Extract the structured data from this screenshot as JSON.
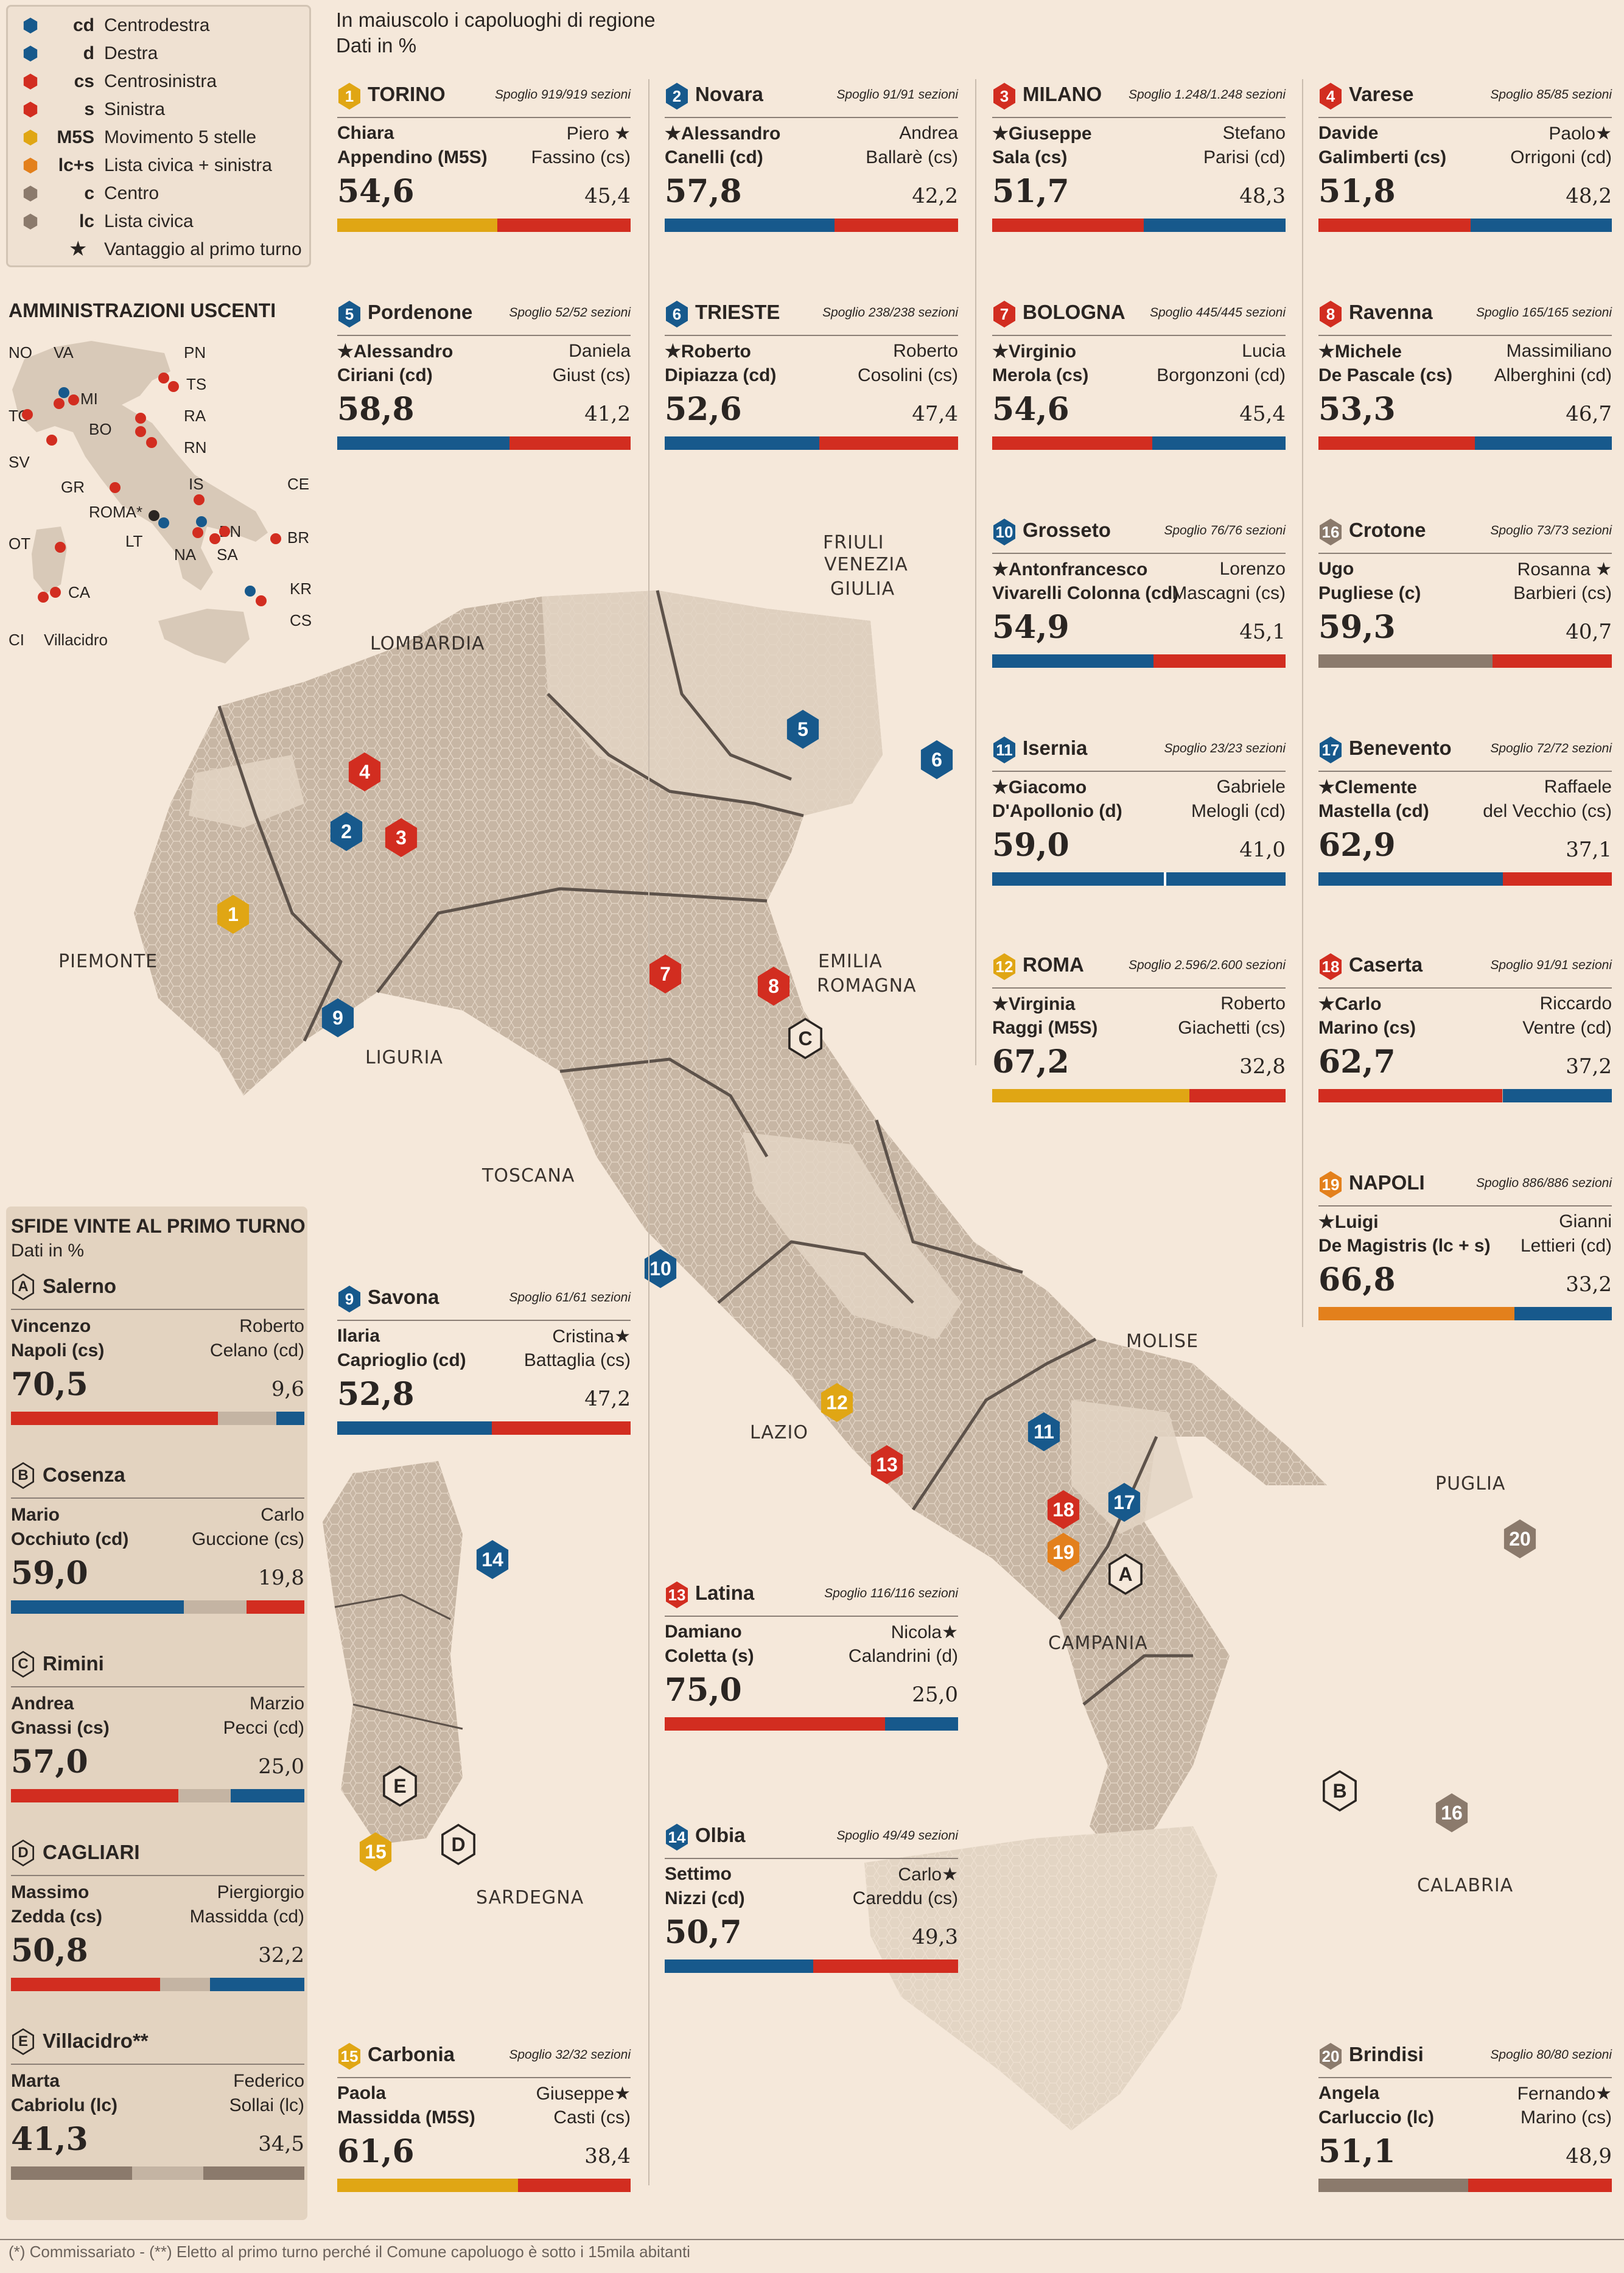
{
  "colors": {
    "cd": "#17598c",
    "d": "#17598c",
    "cs": "#d22d20",
    "s": "#d22d20",
    "M5S": "#e0a614",
    "lcs": "#e3801c",
    "c": "#8b7a6c",
    "lc": "#8b7a6c",
    "rest": "#c4b4a3",
    "map": "#c7b6a4",
    "mapLight": "#e3d5c4"
  },
  "legend": [
    {
      "code": "cd",
      "label": "Centrodestra",
      "color": "#17598c"
    },
    {
      "code": "d",
      "label": "Destra",
      "color": "#17598c"
    },
    {
      "code": "cs",
      "label": "Centrosinistra",
      "color": "#d22d20"
    },
    {
      "code": "s",
      "label": "Sinistra",
      "color": "#d22d20"
    },
    {
      "code": "M5S",
      "label": "Movimento 5 stelle",
      "color": "#e0a614"
    },
    {
      "code": "lc+s",
      "label": "Lista civica + sinistra",
      "color": "#e3801c"
    },
    {
      "code": "c",
      "label": "Centro",
      "color": "#8b7a6c"
    },
    {
      "code": "lc",
      "label": "Lista civica",
      "color": "#8b7a6c"
    }
  ],
  "legend_star": "Vantaggio al primo turno",
  "header": {
    "line1": "In maiuscolo i capoluoghi di regione",
    "line2": "Dati in %"
  },
  "mini_map": {
    "title": "AMMINISTRAZIONI USCENTI",
    "labels": [
      "NO",
      "VA",
      "PN",
      "TS",
      "MI",
      "TO",
      "RA",
      "BO",
      "SV",
      "RN",
      "GR",
      "IS",
      "CE",
      "ROMA*",
      "BN",
      "LT",
      "NA",
      "SA",
      "BR",
      "OT",
      "CA",
      "KR",
      "CS",
      "CI",
      "Villacidro"
    ]
  },
  "regions": [
    "FRIULI",
    "VENEZIA",
    "GIULIA",
    "LOMBARDIA",
    "PIEMONTE",
    "LIGURIA",
    "EMILIA",
    "ROMAGNA",
    "TOSCANA",
    "MOLISE",
    "LAZIO",
    "PUGLIA",
    "CAMPANIA",
    "CALABRIA",
    "SARDEGNA"
  ],
  "chart_data": {
    "type": "table",
    "title": "",
    "ballottaggi": [
      {
        "n": "1",
        "city": "TORINO",
        "spoglio": "Spoglio 919/919 sezioni",
        "l1": "Chiara",
        "l2": "Appendino (M5S)",
        "r1": "Piero ★",
        "r2": "Fassino (cs)",
        "vl": "54,6",
        "vr": "45,4",
        "cl": "M5S",
        "cr": "cs",
        "badge": "M5S"
      },
      {
        "n": "2",
        "city": "Novara",
        "spoglio": "Spoglio 91/91 sezioni",
        "l1": "★Alessandro",
        "l2": "Canelli (cd)",
        "r1": "Andrea",
        "r2": "Ballarè (cs)",
        "vl": "57,8",
        "vr": "42,2",
        "cl": "cd",
        "cr": "cs",
        "badge": "cd"
      },
      {
        "n": "3",
        "city": "MILANO",
        "spoglio": "Spoglio 1.248/1.248 sezioni",
        "l1": "★Giuseppe",
        "l2": "Sala (cs)",
        "r1": "Stefano",
        "r2": "Parisi (cd)",
        "vl": "51,7",
        "vr": "48,3",
        "cl": "cs",
        "cr": "cd",
        "badge": "cs"
      },
      {
        "n": "4",
        "city": "Varese",
        "spoglio": "Spoglio 85/85 sezioni",
        "l1": "Davide",
        "l2": "Galimberti (cs)",
        "r1": "Paolo★",
        "r2": "Orrigoni (cd)",
        "vl": "51,8",
        "vr": "48,2",
        "cl": "cs",
        "cr": "cd",
        "badge": "cs"
      },
      {
        "n": "5",
        "city": "Pordenone",
        "spoglio": "Spoglio 52/52 sezioni",
        "l1": "★Alessandro",
        "l2": "Ciriani (cd)",
        "r1": "Daniela",
        "r2": "Giust (cs)",
        "vl": "58,8",
        "vr": "41,2",
        "cl": "cd",
        "cr": "cs",
        "badge": "cd"
      },
      {
        "n": "6",
        "city": "TRIESTE",
        "spoglio": "Spoglio 238/238 sezioni",
        "l1": "★Roberto",
        "l2": "Dipiazza (cd)",
        "r1": "Roberto",
        "r2": "Cosolini (cs)",
        "vl": "52,6",
        "vr": "47,4",
        "cl": "cd",
        "cr": "cs",
        "badge": "cd"
      },
      {
        "n": "7",
        "city": "BOLOGNA",
        "spoglio": "Spoglio 445/445 sezioni",
        "l1": "★Virginio",
        "l2": "Merola (cs)",
        "r1": "Lucia",
        "r2": "Borgonzoni (cd)",
        "vl": "54,6",
        "vr": "45,4",
        "cl": "cs",
        "cr": "cd",
        "badge": "cs"
      },
      {
        "n": "8",
        "city": "Ravenna",
        "spoglio": "Spoglio 165/165 sezioni",
        "l1": "★Michele",
        "l2": "De Pascale (cs)",
        "r1": "Massimiliano",
        "r2": "Alberghini (cd)",
        "vl": "53,3",
        "vr": "46,7",
        "cl": "cs",
        "cr": "cd",
        "badge": "cs"
      },
      {
        "n": "10",
        "city": "Grosseto",
        "spoglio": "Spoglio 76/76 sezioni",
        "l1": "★Antonfrancesco",
        "l2": "Vivarelli Colonna (cd)",
        "r1": "Lorenzo",
        "r2": "Mascagni (cs)",
        "vl": "54,9",
        "vr": "45,1",
        "cl": "cd",
        "cr": "cs",
        "badge": "cd"
      },
      {
        "n": "16",
        "city": "Crotone",
        "spoglio": "Spoglio 73/73 sezioni",
        "l1": "Ugo",
        "l2": "Pugliese (c)",
        "r1": "Rosanna ★",
        "r2": "Barbieri (cs)",
        "vl": "59,3",
        "vr": "40,7",
        "cl": "c",
        "cr": "cs",
        "badge": "c"
      },
      {
        "n": "11",
        "city": "Isernia",
        "spoglio": "Spoglio 23/23 sezioni",
        "l1": "★Giacomo",
        "l2": "D'Apollonio (d)",
        "r1": "Gabriele",
        "r2": "Melogli (cd)",
        "vl": "59,0",
        "vr": "41,0",
        "cl": "d",
        "cr": "cd",
        "badge": "d"
      },
      {
        "n": "17",
        "city": "Benevento",
        "spoglio": "Spoglio 72/72 sezioni",
        "l1": "★Clemente",
        "l2": "Mastella (cd)",
        "r1": "Raffaele",
        "r2": "del Vecchio (cs)",
        "vl": "62,9",
        "vr": "37,1",
        "cl": "cd",
        "cr": "cs",
        "badge": "cd"
      },
      {
        "n": "12",
        "city": "ROMA",
        "spoglio": "Spoglio 2.596/2.600 sezioni",
        "l1": "★Virginia",
        "l2": "Raggi (M5S)",
        "r1": "Roberto",
        "r2": "Giachetti (cs)",
        "vl": "67,2",
        "vr": "32,8",
        "cl": "M5S",
        "cr": "cs",
        "badge": "M5S"
      },
      {
        "n": "18",
        "city": "Caserta",
        "spoglio": "Spoglio 91/91 sezioni",
        "l1": "★Carlo",
        "l2": "Marino (cs)",
        "r1": "Riccardo",
        "r2": "Ventre (cd)",
        "vl": "62,7",
        "vr": "37,2",
        "cl": "cs",
        "cr": "cd",
        "badge": "cs"
      },
      {
        "n": "19",
        "city": "NAPOLI",
        "spoglio": "Spoglio 886/886 sezioni",
        "l1": "★Luigi",
        "l2": "De Magistris (lc + s)",
        "r1": "Gianni",
        "r2": "Lettieri (cd)",
        "vl": "66,8",
        "vr": "33,2",
        "cl": "lcs",
        "cr": "cd",
        "badge": "lcs"
      },
      {
        "n": "9",
        "city": "Savona",
        "spoglio": "Spoglio 61/61 sezioni",
        "l1": "Ilaria",
        "l2": "Caprioglio (cd)",
        "r1": "Cristina★",
        "r2": "Battaglia (cs)",
        "vl": "52,8",
        "vr": "47,2",
        "cl": "cd",
        "cr": "cs",
        "badge": "cd"
      },
      {
        "n": "13",
        "city": "Latina",
        "spoglio": "Spoglio 116/116 sezioni",
        "l1": "Damiano",
        "l2": "Coletta (s)",
        "r1": "Nicola★",
        "r2": "Calandrini (d)",
        "vl": "75,0",
        "vr": "25,0",
        "cl": "s",
        "cr": "d",
        "badge": "s"
      },
      {
        "n": "14",
        "city": "Olbia",
        "spoglio": "Spoglio 49/49 sezioni",
        "l1": "Settimo",
        "l2": "Nizzi (cd)",
        "r1": "Carlo★",
        "r2": "Careddu (cs)",
        "vl": "50,7",
        "vr": "49,3",
        "cl": "cd",
        "cr": "cs",
        "badge": "cd"
      },
      {
        "n": "15",
        "city": "Carbonia",
        "spoglio": "Spoglio 32/32 sezioni",
        "l1": "Paola",
        "l2": "Massidda (M5S)",
        "r1": "Giuseppe★",
        "r2": "Casti (cs)",
        "vl": "61,6",
        "vr": "38,4",
        "cl": "M5S",
        "cr": "cs",
        "badge": "M5S"
      },
      {
        "n": "20",
        "city": "Brindisi",
        "spoglio": "Spoglio 80/80 sezioni",
        "l1": "Angela",
        "l2": "Carluccio (lc)",
        "r1": "Fernando★",
        "r2": "Marino (cs)",
        "vl": "51,1",
        "vr": "48,9",
        "cl": "lc",
        "cr": "cs",
        "badge": "lc"
      }
    ],
    "primo_turno": {
      "title": "SFIDE VINTE AL PRIMO TURNO",
      "subtitle": "Dati in %",
      "items": [
        {
          "letter": "A",
          "city": "Salerno",
          "l1": "Vincenzo",
          "l2": "Napoli (cs)",
          "r1": "Roberto",
          "r2": "Celano (cd)",
          "vl": "70,5",
          "vr": "9,6",
          "cl": "cs",
          "cr": "cd"
        },
        {
          "letter": "B",
          "city": "Cosenza",
          "l1": "Mario",
          "l2": "Occhiuto (cd)",
          "r1": "Carlo",
          "r2": "Guccione (cs)",
          "vl": "59,0",
          "vr": "19,8",
          "cl": "cd",
          "cr": "cs"
        },
        {
          "letter": "C",
          "city": "Rimini",
          "l1": "Andrea",
          "l2": "Gnassi (cs)",
          "r1": "Marzio",
          "r2": "Pecci (cd)",
          "vl": "57,0",
          "vr": "25,0",
          "cl": "cs",
          "cr": "cd"
        },
        {
          "letter": "D",
          "city": "CAGLIARI",
          "l1": "Massimo",
          "l2": "Zedda (cs)",
          "r1": "Piergiorgio",
          "r2": "Massidda (cd)",
          "vl": "50,8",
          "vr": "32,2",
          "cl": "cs",
          "cr": "cd"
        },
        {
          "letter": "E",
          "city": "Villacidro**",
          "l1": "Marta",
          "l2": "Cabriolu (lc)",
          "r1": "Federico",
          "r2": "Sollai (lc)",
          "vl": "41,3",
          "vr": "34,5",
          "cl": "lc",
          "cr": "lc"
        }
      ]
    }
  },
  "footnote": "(*) Commissariato - (**) Eletto al primo turno perché il Comune capoluogo è sotto i 15mila abitanti"
}
